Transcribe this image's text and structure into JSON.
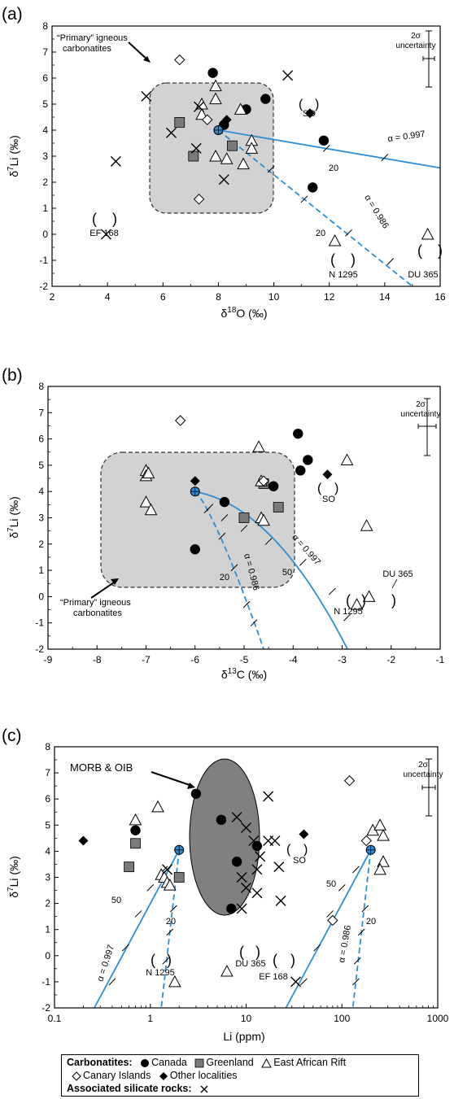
{
  "panels": [
    {
      "label": "(a)",
      "xlabel_main": "δ",
      "xlabel_sup": "18",
      "xlabel_rest": "O (‰)",
      "ylabel_main": "δ",
      "ylabel_sup": "7",
      "ylabel_rest": "Li (‰)",
      "xticks": [
        "2",
        "4",
        "6",
        "8",
        "10",
        "12",
        "14",
        "16"
      ],
      "yticks": [
        "-2",
        "-1",
        "0",
        "1",
        "2",
        "3",
        "4",
        "5",
        "6",
        "7",
        "8"
      ],
      "annotations": {
        "field_label_1": "“Primary” igneous",
        "field_label_2": "carbonatites",
        "uncert_1": "2σ",
        "uncert_2": "uncertainty",
        "so": "SO",
        "ef168": "EF 168",
        "n1295": "N 1295",
        "du365": "DU 365",
        "alpha_solid": "α = 0.997",
        "alpha_dash": "α = 0.986",
        "tick20a": "20",
        "tick20b": "20"
      }
    },
    {
      "label": "(b)",
      "xlabel_main": "δ",
      "xlabel_sup": "13",
      "xlabel_rest": "C (‰)",
      "ylabel_main": "δ",
      "ylabel_sup": "7",
      "ylabel_rest": "Li (‰)",
      "xticks": [
        "-9",
        "-8",
        "-7",
        "-6",
        "-5",
        "-4",
        "-3",
        "-2",
        "-1"
      ],
      "yticks": [
        "-2",
        "-1",
        "0",
        "1",
        "2",
        "3",
        "4",
        "5",
        "6",
        "7",
        "8"
      ],
      "annotations": {
        "field_label_1": "“Primary” igneous",
        "field_label_2": "carbonatites",
        "uncert_1": "2σ",
        "uncert_2": "uncertainty",
        "so": "SO",
        "n1295": "N 1295",
        "du365": "DU 365",
        "alpha_solid": "α = 0.997",
        "alpha_dash": "α = 0.986",
        "tick50": "50",
        "tick20": "20"
      }
    },
    {
      "label": "(c)",
      "xlabel_main": "Li (ppm)",
      "ylabel_main": "δ",
      "ylabel_sup": "7",
      "ylabel_rest": "Li (‰)",
      "xticks": [
        "0.1",
        "1",
        "10",
        "100",
        "1000"
      ],
      "yticks": [
        "-2",
        "-1",
        "0",
        "1",
        "2",
        "3",
        "4",
        "5",
        "6",
        "7",
        "8"
      ],
      "annotations": {
        "morb": "MORB & OIB",
        "uncert_1": "2σ",
        "uncert_2": "uncertainty",
        "so": "SO",
        "n1295": "N 1295",
        "du365": "DU 365",
        "ef168": "EF 168",
        "alpha_solid": "α = 0.997",
        "alpha_dash": "α = 0.986",
        "tick50a": "50",
        "tick20a": "20",
        "tick50b": "50",
        "tick20b": "20"
      }
    }
  ],
  "legend": {
    "carbonatites_label": "Carbonatites:",
    "canada": "Canada",
    "greenland": "Greenland",
    "ear": "East African Rift",
    "canary": "Canary Islands",
    "other": "Other localities",
    "silicate_label": "Associated silicate rocks:"
  },
  "colors": {
    "model_line": "#2b8fd6",
    "field_grey": "#d2d2d2",
    "morb_grey": "#808080"
  },
  "chart_data": [
    {
      "type": "scatter",
      "title": "(a)",
      "xlabel": "δ18O (‰)",
      "ylabel": "δ7Li (‰)",
      "xlim": [
        2,
        16
      ],
      "ylim": [
        -2,
        8
      ],
      "series": [
        {
          "name": "Canada",
          "values": [
            [
              7.8,
              6.2
            ],
            [
              9.0,
              4.8
            ],
            [
              9.7,
              5.2
            ],
            [
              8.2,
              4.2
            ],
            [
              11.8,
              3.6
            ],
            [
              11.4,
              1.8
            ]
          ]
        },
        {
          "name": "Greenland",
          "values": [
            [
              6.6,
              4.3
            ],
            [
              7.1,
              3.0
            ],
            [
              8.5,
              3.4
            ]
          ]
        },
        {
          "name": "East African Rift",
          "values": [
            [
              7.9,
              5.7
            ],
            [
              7.4,
              5.0
            ],
            [
              7.9,
              5.2
            ],
            [
              7.4,
              4.6
            ],
            [
              8.8,
              4.8
            ],
            [
              9.2,
              3.6
            ],
            [
              9.2,
              3.3
            ],
            [
              7.9,
              3.0
            ],
            [
              8.3,
              2.9
            ],
            [
              8.9,
              2.7
            ]
          ]
        },
        {
          "name": "Canary Islands",
          "values": [
            [
              6.6,
              6.7
            ],
            [
              7.6,
              4.4
            ],
            [
              7.3,
              1.35
            ]
          ]
        },
        {
          "name": "Other localities",
          "values": [
            [
              8.3,
              4.4
            ]
          ]
        },
        {
          "name": "Associated silicate rocks",
          "values": [
            [
              4.3,
              2.8
            ],
            [
              5.4,
              5.3
            ],
            [
              10.5,
              6.1
            ],
            [
              6.3,
              3.9
            ],
            [
              7.2,
              3.3
            ],
            [
              7.3,
              4.9
            ],
            [
              8.2,
              2.1
            ]
          ]
        }
      ]
    },
    {
      "type": "scatter",
      "title": "(b)",
      "xlabel": "δ13C (‰)",
      "ylabel": "δ7Li (‰)",
      "xlim": [
        -9,
        -1
      ],
      "ylim": [
        -2,
        8
      ],
      "series": [
        {
          "name": "Canada",
          "values": [
            [
              -3.9,
              6.2
            ],
            [
              -3.85,
              4.8
            ],
            [
              -3.7,
              5.2
            ],
            [
              -4.4,
              4.2
            ],
            [
              -5.4,
              3.6
            ],
            [
              -6.0,
              1.8
            ]
          ]
        },
        {
          "name": "Greenland",
          "values": [
            [
              -4.6,
              4.3
            ],
            [
              -4.3,
              3.4
            ],
            [
              -5.0,
              3.0
            ]
          ]
        },
        {
          "name": "East African Rift",
          "values": [
            [
              -7.0,
              4.8
            ],
            [
              -7.0,
              4.6
            ],
            [
              -6.95,
              4.7
            ],
            [
              -7.0,
              3.6
            ],
            [
              -6.9,
              3.3
            ],
            [
              -4.7,
              5.7
            ],
            [
              -4.65,
              4.4
            ],
            [
              -4.65,
              3.0
            ],
            [
              -4.6,
              2.9
            ],
            [
              -2.9,
              5.2
            ],
            [
              -2.5,
              2.7
            ]
          ]
        },
        {
          "name": "Canary Islands",
          "values": [
            [
              -6.3,
              6.7
            ],
            [
              -4.6,
              4.4
            ]
          ]
        },
        {
          "name": "Other localities",
          "values": [
            [
              -6.0,
              4.4
            ]
          ]
        }
      ]
    },
    {
      "type": "scatter",
      "title": "(c)",
      "xlabel": "Li (ppm)",
      "ylabel": "δ7Li (‰)",
      "xscale": "log",
      "xlim": [
        0.1,
        1000
      ],
      "ylim": [
        -2,
        8
      ],
      "series": [
        {
          "name": "Canada",
          "values": [
            [
              0.7,
              4.8
            ],
            [
              3.0,
              6.2
            ],
            [
              5.5,
              5.2
            ],
            [
              8.0,
              3.6
            ],
            [
              13.0,
              4.2
            ],
            [
              7.0,
              1.8
            ]
          ]
        },
        {
          "name": "Greenland",
          "values": [
            [
              0.7,
              4.3
            ],
            [
              0.6,
              3.4
            ],
            [
              2.0,
              3.0
            ]
          ]
        },
        {
          "name": "East African Rift",
          "values": [
            [
              0.7,
              5.2
            ],
            [
              1.2,
              5.7
            ],
            [
              1.3,
              3.1
            ],
            [
              1.4,
              3.0
            ],
            [
              1.5,
              2.8
            ],
            [
              1.6,
              2.7
            ],
            [
              210,
              4.8
            ],
            [
              250,
              5.0
            ],
            [
              270,
              4.6
            ],
            [
              270,
              3.6
            ],
            [
              250,
              3.3
            ]
          ]
        },
        {
          "name": "Canary Islands",
          "values": [
            [
              120,
              6.7
            ],
            [
              180,
              4.4
            ],
            [
              80,
              1.35
            ]
          ]
        },
        {
          "name": "Other localities",
          "values": [
            [
              0.2,
              4.4
            ]
          ]
        },
        {
          "name": "Associated silicate rocks",
          "values": [
            [
              1.5,
              3.3
            ],
            [
              8,
              5.3
            ],
            [
              10,
              4.9
            ],
            [
              12,
              4.4
            ],
            [
              14,
              3.8
            ],
            [
              9,
              3.0
            ],
            [
              10,
              2.6
            ],
            [
              13,
              2.4
            ],
            [
              17,
              6.1
            ],
            [
              17,
              4.4
            ],
            [
              20,
              4.4
            ],
            [
              22,
              3.4
            ],
            [
              23,
              2.1
            ],
            [
              9,
              1.8
            ],
            [
              13,
              3.3
            ]
          ]
        }
      ]
    }
  ]
}
